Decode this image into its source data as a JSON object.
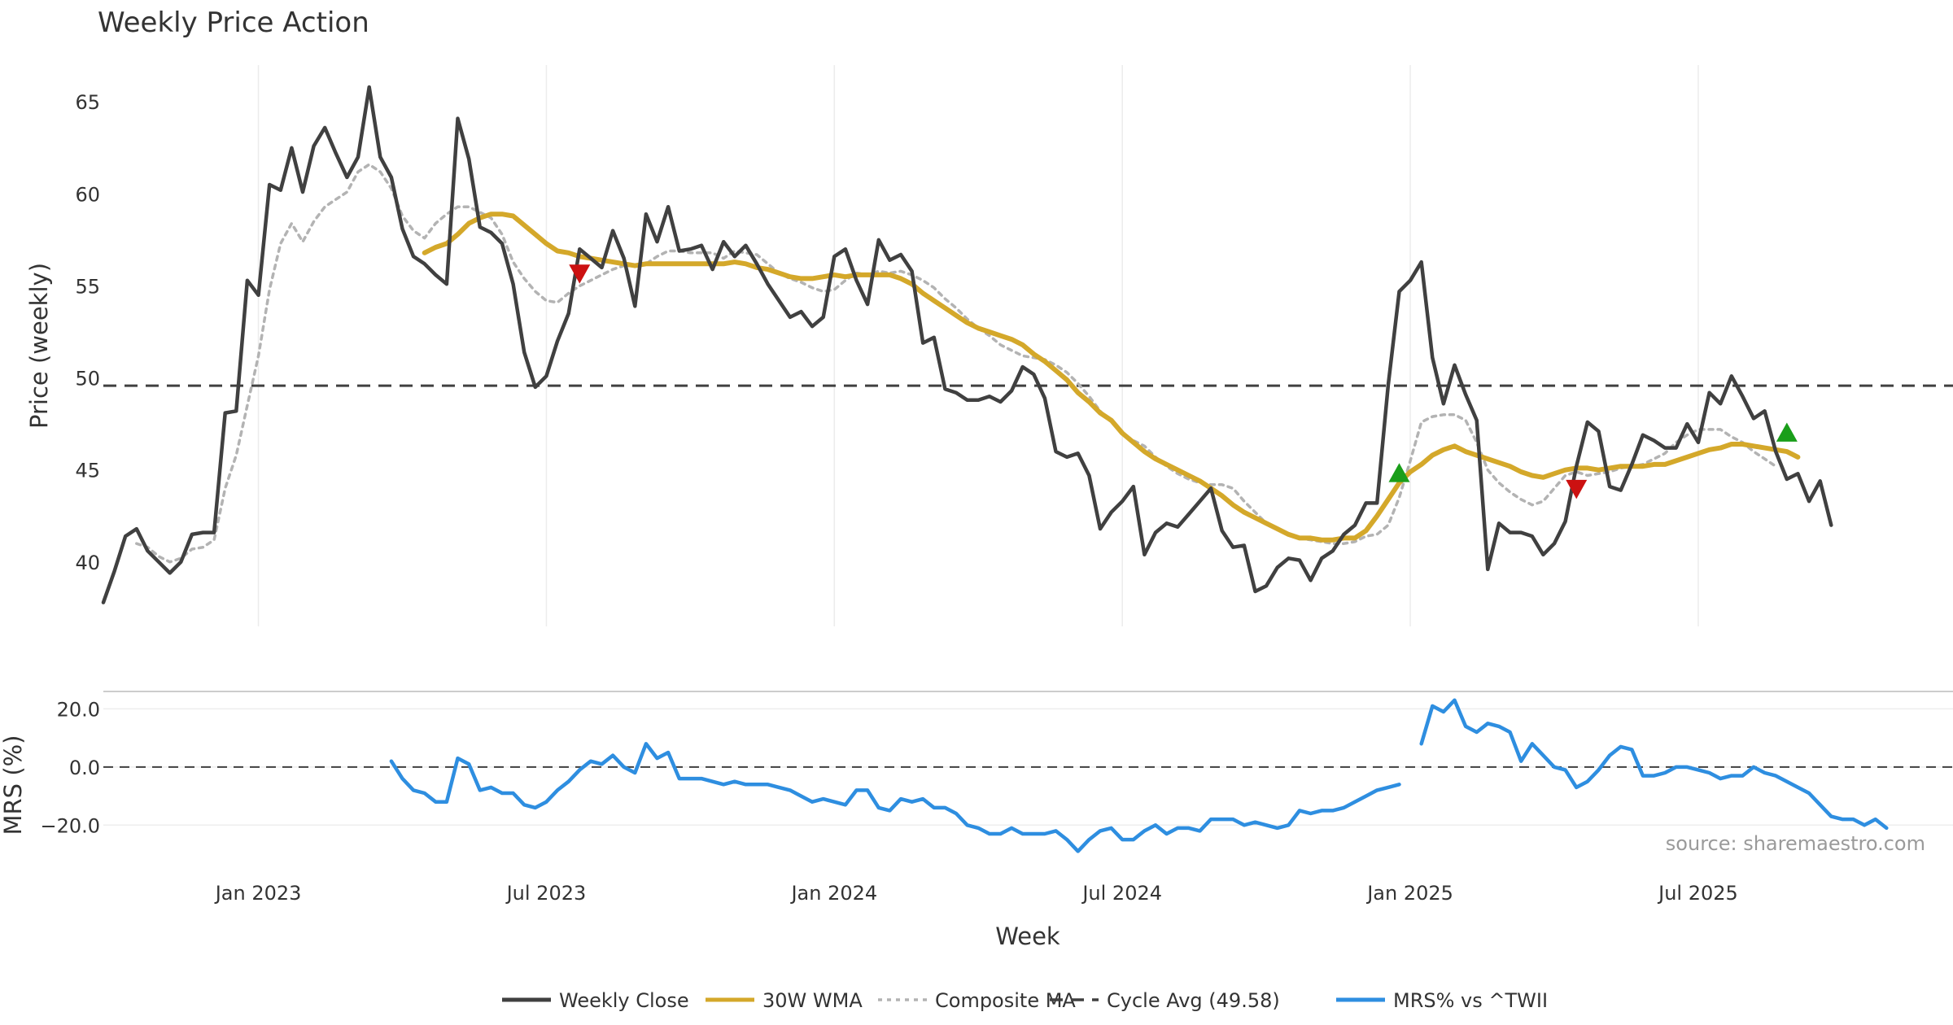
{
  "chart_data": {
    "type": "line",
    "title": "Weekly Price Action",
    "xlabel": "Week",
    "source": "source: sharemaestro.com",
    "x_ticks": [
      "Jan 2023",
      "Jul 2023",
      "Jan 2024",
      "Jul 2024",
      "Jan 2025",
      "Jul 2025"
    ],
    "x_range": [
      -14,
      153
    ],
    "price_panel": {
      "ylabel": "Price (weekly)",
      "ylim": [
        36.5,
        67
      ],
      "yticks": [
        "40",
        "45",
        "50",
        "55",
        "60",
        "65"
      ],
      "cycle_avg": 49.58,
      "series": [
        {
          "name": "Weekly Close",
          "color": "#404040",
          "start": -14,
          "values": [
            37.8,
            39.5,
            41.4,
            41.8,
            40.6,
            40.0,
            39.4,
            40.0,
            41.5,
            41.6,
            41.6,
            48.1,
            48.2,
            55.3,
            54.5,
            60.5,
            60.2,
            62.5,
            60.1,
            62.6,
            63.6,
            62.2,
            60.9,
            62.0,
            65.8,
            62.0,
            60.9,
            58.1,
            56.6,
            56.2,
            55.6,
            55.1,
            64.1,
            61.9,
            58.2,
            57.9,
            57.3,
            55.1,
            51.4,
            49.5,
            50.1,
            52.0,
            53.5,
            57.0,
            56.5,
            56.0,
            58.0,
            56.5,
            53.9,
            58.9,
            57.4,
            59.3,
            56.9,
            57.0,
            57.2,
            55.9,
            57.4,
            56.6,
            57.2,
            56.2,
            55.1,
            54.2,
            53.3,
            53.6,
            52.8,
            53.3,
            56.6,
            57.0,
            55.3,
            54.0,
            57.5,
            56.4,
            56.7,
            55.8,
            51.9,
            52.2,
            49.4,
            49.2,
            48.8,
            48.8,
            49.0,
            48.7,
            49.3,
            50.6,
            50.2,
            48.9,
            46.0,
            45.7,
            45.9,
            44.7,
            41.8,
            42.7,
            43.3,
            44.1,
            40.4,
            41.6,
            42.1,
            41.9,
            42.6,
            43.3,
            44.0,
            41.7,
            40.8,
            40.9,
            38.4,
            38.7,
            39.7,
            40.2,
            40.1,
            39.0,
            40.2,
            40.6,
            41.5,
            42.0,
            43.2,
            43.2,
            49.6,
            54.7,
            55.3,
            56.3,
            51.1,
            48.6,
            50.7,
            49.1,
            47.7,
            39.6,
            42.1,
            41.6,
            41.6,
            41.4,
            40.4,
            41.0,
            42.2,
            45.2,
            47.6,
            47.1,
            44.1,
            43.9,
            45.3,
            46.9,
            46.6,
            46.2,
            46.2,
            47.5,
            46.5,
            49.2,
            48.6,
            50.1,
            49.0,
            47.8,
            48.2,
            46.0,
            44.5,
            44.8,
            43.3,
            44.4,
            42.0
          ]
        },
        {
          "name": "30W WMA",
          "color": "#d4a82a",
          "start": 15,
          "values": [
            56.8,
            57.1,
            57.3,
            57.8,
            58.4,
            58.7,
            58.9,
            58.9,
            58.8,
            58.3,
            57.8,
            57.3,
            56.9,
            56.8,
            56.6,
            56.5,
            56.4,
            56.3,
            56.2,
            56.1,
            56.2,
            56.2,
            56.2,
            56.2,
            56.2,
            56.2,
            56.2,
            56.2,
            56.3,
            56.2,
            56.0,
            55.9,
            55.7,
            55.5,
            55.4,
            55.4,
            55.5,
            55.6,
            55.5,
            55.6,
            55.6,
            55.6,
            55.6,
            55.4,
            55.1,
            54.6,
            54.2,
            53.8,
            53.4,
            53.0,
            52.7,
            52.5,
            52.3,
            52.1,
            51.8,
            51.3,
            50.9,
            50.4,
            49.9,
            49.2,
            48.7,
            48.1,
            47.7,
            47.0,
            46.5,
            46.0,
            45.6,
            45.3,
            45.0,
            44.7,
            44.4,
            44.0,
            43.6,
            43.1,
            42.7,
            42.4,
            42.1,
            41.8,
            41.5,
            41.3,
            41.3,
            41.2,
            41.2,
            41.3,
            41.3,
            41.7,
            42.5,
            43.4,
            44.3,
            44.9,
            45.3,
            45.8,
            46.1,
            46.3,
            46.0,
            45.8,
            45.6,
            45.4,
            45.2,
            44.9,
            44.7,
            44.6,
            44.8,
            45.0,
            45.1,
            45.1,
            45.0,
            45.1,
            45.2,
            45.2,
            45.2,
            45.3,
            45.3,
            45.5,
            45.7,
            45.9,
            46.1,
            46.2,
            46.4,
            46.4,
            46.3,
            46.2,
            46.1,
            46.0,
            45.7
          ]
        },
        {
          "name": "Composite MA",
          "color": "#b3b3b3",
          "start": -11,
          "values": [
            41.0,
            40.8,
            40.3,
            40.0,
            40.2,
            40.7,
            40.8,
            41.2,
            44.0,
            45.8,
            48.5,
            51.2,
            54.8,
            57.3,
            58.4,
            57.4,
            58.5,
            59.3,
            59.7,
            60.1,
            61.2,
            61.6,
            61.2,
            60.3,
            58.8,
            58.0,
            57.6,
            58.4,
            58.9,
            59.3,
            59.3,
            59.0,
            58.7,
            57.8,
            56.3,
            55.4,
            54.7,
            54.2,
            54.1,
            54.6,
            55.0,
            55.3,
            55.6,
            55.9,
            56.1,
            56.1,
            56.2,
            56.6,
            56.9,
            56.9,
            56.8,
            56.8,
            56.8,
            56.5,
            56.9,
            56.8,
            56.7,
            56.2,
            55.7,
            55.4,
            55.2,
            54.9,
            54.7,
            54.8,
            55.3,
            55.7,
            55.6,
            55.8,
            55.7,
            55.8,
            55.6,
            55.3,
            54.9,
            54.3,
            53.8,
            53.2,
            52.7,
            52.3,
            51.8,
            51.5,
            51.2,
            51.1,
            51.0,
            50.7,
            50.3,
            49.7,
            49.0,
            48.2,
            47.6,
            47.0,
            46.6,
            46.3,
            45.7,
            45.2,
            44.8,
            44.5,
            44.3,
            44.2,
            44.2,
            44.0,
            43.3,
            42.7,
            42.1,
            41.8,
            41.5,
            41.3,
            41.2,
            41.1,
            41.0,
            41.0,
            41.1,
            41.4,
            41.5,
            42.0,
            43.5,
            45.5,
            47.6,
            47.9,
            48.0,
            48.0,
            47.7,
            46.5,
            45.0,
            44.3,
            43.8,
            43.4,
            43.1,
            43.3,
            44.0,
            44.7,
            44.9,
            44.7,
            44.8,
            44.9,
            45.1,
            45.2,
            45.3,
            45.6,
            45.9,
            46.5,
            46.9,
            47.2,
            47.2,
            47.2,
            46.8,
            46.5,
            46.0,
            45.6,
            45.2
          ]
        }
      ],
      "markers": [
        {
          "type": "sell",
          "week": 29,
          "value": 55.7,
          "color": "#cc1111"
        },
        {
          "type": "buy",
          "week": 103,
          "value": 44.8,
          "color": "#1a9e1a"
        },
        {
          "type": "sell",
          "week": 119,
          "value": 44.0,
          "color": "#cc1111"
        },
        {
          "type": "buy",
          "week": 138,
          "value": 47.0,
          "color": "#1a9e1a"
        }
      ]
    },
    "mrs_panel": {
      "ylabel": "MRS (%)",
      "ylim": [
        -30,
        26
      ],
      "yticks": [
        "−20.0",
        "0.0",
        "20.0"
      ],
      "series": [
        {
          "name": "MRS% vs ^TWII",
          "color": "#2e8ee0",
          "start": 12,
          "segments": [
            [
              2,
              -4,
              -8,
              -9,
              -12,
              -12,
              3,
              1,
              -8,
              -7,
              -9,
              -9,
              -13,
              -14,
              -12,
              -8,
              -5,
              -1,
              2,
              1,
              4,
              0,
              -2,
              8,
              3,
              5,
              -4,
              -4,
              -4,
              -5,
              -6,
              -5,
              -6,
              -6,
              -6,
              -7,
              -8,
              -10,
              -12,
              -11,
              -12,
              -13,
              -8,
              -8,
              -14,
              -15,
              -11,
              -12,
              -11,
              -14,
              -14,
              -16,
              -20,
              -21,
              -23,
              -23,
              -21,
              -23,
              -23,
              -23,
              -22,
              -25,
              -29,
              -25,
              -22,
              -21,
              -25,
              -25,
              -22,
              -20,
              -23,
              -21,
              -21,
              -22,
              -18,
              -18,
              -18,
              -20,
              -19,
              -20,
              -21,
              -20,
              -15,
              -16,
              -15,
              -15,
              -14,
              -12,
              -10,
              -8,
              -7,
              -6
            ],
            [
              8,
              21,
              19,
              23,
              14,
              12,
              15,
              14,
              12,
              2,
              8,
              4,
              0,
              -1,
              -7,
              -5,
              -1,
              4,
              7,
              6,
              -3,
              -3,
              -2,
              0,
              0,
              -1,
              -2,
              -4,
              -3,
              -3,
              0,
              -2,
              -3,
              -5,
              -7,
              -9,
              -13,
              -17,
              -18,
              -18,
              -20,
              -18,
              -21
            ]
          ]
        }
      ]
    },
    "legend": [
      {
        "name": "Weekly Close",
        "style": "solid",
        "color": "#404040"
      },
      {
        "name": "30W WMA",
        "style": "solid",
        "color": "#d4a82a"
      },
      {
        "name": "Composite MA",
        "style": "dotted",
        "color": "#b3b3b3"
      },
      {
        "name": "Cycle Avg (49.58)",
        "style": "dashed",
        "color": "#404040"
      },
      {
        "name": "MRS% vs ^TWII",
        "style": "solid",
        "color": "#2e8ee0"
      }
    ]
  }
}
